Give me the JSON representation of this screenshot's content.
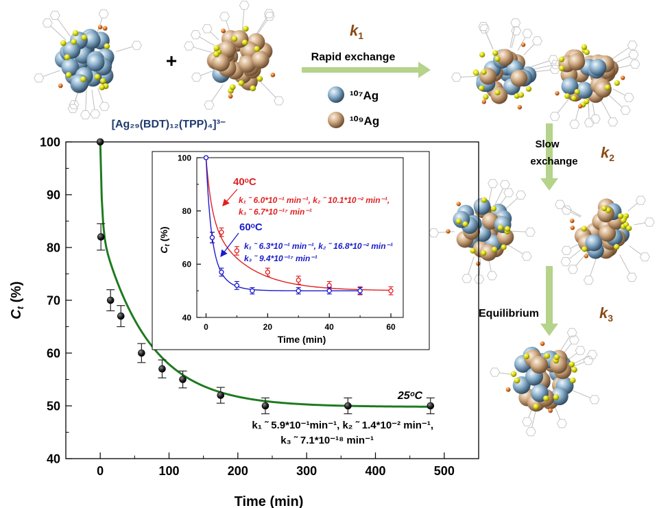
{
  "scheme": {
    "formula": "[Ag₂₉(BDT)₁₂(TPP)₄]³⁻",
    "plus": "+",
    "rapid_label": "Rapid exchange",
    "slow_label_1": "Slow",
    "slow_label_2": "exchange",
    "equilibrium_label": "Equilibrium",
    "k1": "k",
    "k1_sub": "1",
    "k2": "k",
    "k2_sub": "2",
    "k3": "k",
    "k3_sub": "3",
    "legend_ag107": "¹⁰⁷Ag",
    "legend_ag109": "¹⁰⁹Ag",
    "colors": {
      "ag107": "#7fa6c4",
      "ag109": "#c9a17c",
      "sulfur": "#d4d400",
      "phosphorus": "#d9701e",
      "arrow": "#b5d38a",
      "k_label": "#8b4a14",
      "formula": "#1f3a6e"
    }
  },
  "main_chart": {
    "xlabel": "Time (min)",
    "ylabel_main": "C",
    "ylabel_sub": "t",
    "ylabel_unit": " (%)",
    "xticks": [
      "0",
      "100",
      "200",
      "300",
      "400",
      "500"
    ],
    "yticks": [
      "40",
      "50",
      "60",
      "70",
      "80",
      "90",
      "100"
    ],
    "temp_label": "25ᵒC",
    "rate_line_1": "k₁ ˜ 5.9*10⁻¹min⁻¹, k₂ ˜ 1.4*10⁻² min⁻¹,",
    "rate_line_2": "k₃ ˜ 7.1*10⁻¹⁸ min⁻¹"
  },
  "inset_chart": {
    "xlabel": "Time (min)",
    "ylabel_main": "C",
    "ylabel_sub": "t",
    "ylabel_unit": " (%)",
    "xticks": [
      "0",
      "20",
      "40",
      "60"
    ],
    "yticks": [
      "40",
      "60",
      "80",
      "100"
    ],
    "label_40": "40ᵒC",
    "rate_40_line_1": "k₁ ˜ 6.0*10⁻¹ min⁻¹, k₂ ˜ 10.1*10⁻² min⁻¹,",
    "rate_40_line_2": "k₃ ˜ 6.7*10⁻¹⁷ min⁻¹",
    "label_60": "60ᵒC",
    "rate_60_line_1": "k₁ ˜ 6.3*10⁻¹ min⁻¹, k₂ ˜ 16.8*10⁻² min⁻¹",
    "rate_60_line_2": "k₃ ˜ 9.4*10⁻¹⁷ min⁻¹"
  },
  "chart_data": [
    {
      "type": "scatter",
      "xlabel": "Time (min)",
      "ylabel": "Ct (%)",
      "xlim": [
        -50,
        550
      ],
      "ylim": [
        40,
        100
      ],
      "series": [
        {
          "name": "25ᵒC",
          "color": "#1f7a1f",
          "marker_color": "#111111",
          "x": [
            0,
            1,
            15,
            30,
            60,
            90,
            120,
            175,
            240,
            360,
            480
          ],
          "y": [
            100,
            82,
            70,
            67,
            60,
            57,
            55,
            52,
            50,
            50,
            50
          ],
          "err": [
            0,
            2.5,
            2,
            2,
            1.8,
            1.7,
            1.6,
            1.5,
            1.5,
            1.5,
            1.5
          ],
          "fit": {
            "plateau": 49.8,
            "a1": 16.5,
            "t1": 2.5,
            "a2": 33.7,
            "t2": 70
          }
        }
      ]
    },
    {
      "type": "scatter",
      "xlabel": "Time (min)",
      "ylabel": "Ct (%)",
      "xlim": [
        -3,
        64
      ],
      "ylim": [
        40,
        100
      ],
      "series": [
        {
          "name": "40ᵒC",
          "color": "#e02020",
          "x": [
            0,
            2,
            5,
            10,
            20,
            30,
            40,
            50,
            60
          ],
          "y": [
            100,
            70,
            72,
            65,
            57,
            54,
            52,
            50,
            50
          ],
          "err": [
            0,
            2,
            1.6,
            1.6,
            1.5,
            1.5,
            1.5,
            1.5,
            1.5
          ],
          "fit": {
            "plateau": 50,
            "a1": 22,
            "t1": 1.8,
            "a2": 28,
            "t2": 12
          }
        },
        {
          "name": "60ᵒC",
          "color": "#1a1acc",
          "x": [
            0,
            2,
            5,
            10,
            15,
            30,
            40,
            50
          ],
          "y": [
            100,
            70,
            57,
            52,
            50,
            50,
            50,
            50
          ],
          "err": [
            0,
            2,
            1.5,
            1.5,
            1.2,
            1.2,
            1.2,
            1.2
          ],
          "fit": {
            "plateau": 50,
            "a1": 30,
            "t1": 1.5,
            "a2": 20,
            "t2": 4
          }
        }
      ]
    }
  ]
}
